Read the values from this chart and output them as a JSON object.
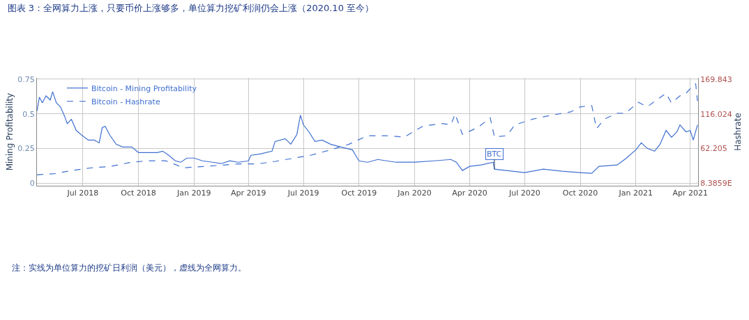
{
  "chart_data": {
    "type": "line",
    "title": "图表 3：全网算力上涨，只要币价上涨够多，单位算力挖矿利润仍会上涨（2020.10 至今）",
    "ylabel": "Mining Profitability",
    "y2label": "Hashrate",
    "annotations": [
      "注：实线为单位算力的挖矿日利润（美元），虚线为全网算力。",
      {
        "text": "BTC",
        "x": "2020-05-12",
        "y": 0.1
      }
    ],
    "xlim": [
      "2018-04-16",
      "2021-04-14"
    ],
    "xticks": [
      {
        "value": "2018-07-01",
        "label": "Jul 2018"
      },
      {
        "value": "2018-10-01",
        "label": "Oct 2018"
      },
      {
        "value": "2019-01-01",
        "label": "Jan 2019"
      },
      {
        "value": "2019-04-01",
        "label": "Apr 2019"
      },
      {
        "value": "2019-07-01",
        "label": "Jul 2019"
      },
      {
        "value": "2019-10-01",
        "label": "Oct 2019"
      },
      {
        "value": "2020-01-01",
        "label": "Jan 2020"
      },
      {
        "value": "2020-04-01",
        "label": "Apr 2020"
      },
      {
        "value": "2020-07-01",
        "label": "Jul 2020"
      },
      {
        "value": "2020-10-01",
        "label": "Oct 2020"
      },
      {
        "value": "2021-01-01",
        "label": "Jan 2021"
      },
      {
        "value": "2021-04-01",
        "label": "Apr 2021"
      }
    ],
    "ylim": [
      -0.02,
      0.76
    ],
    "yticks": [
      0,
      0.25,
      0.5,
      0.75
    ],
    "y2lim": [
      4.08,
      172.0
    ],
    "y2ticks": [
      {
        "value": 8.3859,
        "label": "8.3859E"
      },
      62.205,
      116.024,
      169.843
    ],
    "grid": true,
    "legend": "top left",
    "marker": "none",
    "series": [
      {
        "name": "Bitcoin - Mining Profitability",
        "color": "#3f6fd1",
        "line_style": "solid",
        "x": [
          "2018-04-16",
          "2018-04-20",
          "2018-04-25",
          "2018-05-01",
          "2018-05-08",
          "2018-05-12",
          "2018-05-18",
          "2018-05-25",
          "2018-06-01",
          "2018-06-05",
          "2018-06-12",
          "2018-06-20",
          "2018-06-28",
          "2018-07-10",
          "2018-07-20",
          "2018-07-28",
          "2018-08-02",
          "2018-08-07",
          "2018-08-14",
          "2018-08-25",
          "2018-09-05",
          "2018-09-20",
          "2018-10-01",
          "2018-10-15",
          "2018-11-01",
          "2018-11-10",
          "2018-11-20",
          "2018-12-01",
          "2018-12-10",
          "2018-12-20",
          "2019-01-01",
          "2019-01-15",
          "2019-02-01",
          "2019-02-15",
          "2019-03-01",
          "2019-03-15",
          "2019-04-01",
          "2019-04-05",
          "2019-04-20",
          "2019-05-10",
          "2019-05-15",
          "2019-06-01",
          "2019-06-10",
          "2019-06-20",
          "2019-06-26",
          "2019-07-01",
          "2019-07-10",
          "2019-07-20",
          "2019-08-01",
          "2019-08-15",
          "2019-09-01",
          "2019-09-20",
          "2019-09-28",
          "2019-10-01",
          "2019-10-15",
          "2019-11-01",
          "2019-12-01",
          "2020-01-01",
          "2020-02-01",
          "2020-03-01",
          "2020-03-10",
          "2020-03-20",
          "2020-04-01",
          "2020-04-20",
          "2020-05-10",
          "2020-05-12",
          "2020-06-01",
          "2020-07-01",
          "2020-08-01",
          "2020-09-01",
          "2020-10-01",
          "2020-10-20",
          "2020-11-01",
          "2020-12-01",
          "2020-12-15",
          "2021-01-01",
          "2021-01-10",
          "2021-01-20",
          "2021-02-01",
          "2021-02-10",
          "2021-02-20",
          "2021-03-01",
          "2021-03-10",
          "2021-03-15",
          "2021-03-25",
          "2021-04-01",
          "2021-04-06",
          "2021-04-13"
        ],
        "values": [
          0.52,
          0.62,
          0.58,
          0.63,
          0.6,
          0.66,
          0.58,
          0.55,
          0.48,
          0.43,
          0.46,
          0.38,
          0.35,
          0.31,
          0.31,
          0.29,
          0.4,
          0.41,
          0.35,
          0.28,
          0.26,
          0.26,
          0.22,
          0.22,
          0.22,
          0.23,
          0.2,
          0.16,
          0.15,
          0.18,
          0.18,
          0.16,
          0.15,
          0.14,
          0.16,
          0.15,
          0.16,
          0.2,
          0.21,
          0.23,
          0.3,
          0.32,
          0.28,
          0.35,
          0.49,
          0.42,
          0.37,
          0.3,
          0.31,
          0.28,
          0.26,
          0.24,
          0.18,
          0.16,
          0.15,
          0.17,
          0.15,
          0.15,
          0.16,
          0.17,
          0.15,
          0.09,
          0.12,
          0.13,
          0.15,
          0.1,
          0.09,
          0.075,
          0.1,
          0.085,
          0.075,
          0.07,
          0.12,
          0.13,
          0.175,
          0.24,
          0.29,
          0.25,
          0.23,
          0.28,
          0.38,
          0.33,
          0.37,
          0.42,
          0.37,
          0.38,
          0.31,
          0.42
        ]
      },
      {
        "name": "Bitcoin - Hashrate",
        "color": "#3f6fd1",
        "line_style": "dashed",
        "axis": "y2",
        "x": [
          "2018-04-16",
          "2018-05-15",
          "2018-06-15",
          "2018-07-15",
          "2018-08-15",
          "2018-09-15",
          "2018-10-15",
          "2018-11-15",
          "2018-12-15",
          "2019-01-15",
          "2019-02-15",
          "2019-03-15",
          "2019-04-15",
          "2019-05-15",
          "2019-06-15",
          "2019-07-15",
          "2019-08-15",
          "2019-09-15",
          "2019-10-15",
          "2019-11-15",
          "2019-12-15",
          "2020-01-15",
          "2020-02-15",
          "2020-03-01",
          "2020-03-08",
          "2020-03-20",
          "2020-04-15",
          "2020-05-05",
          "2020-05-12",
          "2020-06-01",
          "2020-06-15",
          "2020-07-15",
          "2020-08-15",
          "2020-09-15",
          "2020-10-01",
          "2020-10-20",
          "2020-10-28",
          "2020-11-10",
          "2020-12-01",
          "2020-12-15",
          "2021-01-05",
          "2021-01-20",
          "2021-02-05",
          "2021-02-20",
          "2021-03-01",
          "2021-03-15",
          "2021-03-25",
          "2021-04-05",
          "2021-04-10",
          "2021-04-13"
        ],
        "values": [
          21,
          23,
          28,
          32,
          34,
          40,
          43,
          43,
          32,
          34,
          36,
          38,
          38,
          42,
          47,
          52,
          60,
          69,
          82,
          82,
          80,
          97,
          101,
          99,
          116,
          84,
          95,
          110,
          80,
          82,
          99,
          108,
          114,
          119,
          127,
          129,
          93,
          108,
          117,
          117,
          134,
          127,
          138,
          148,
          133,
          144,
          148,
          159,
          163,
          136
        ]
      }
    ]
  }
}
